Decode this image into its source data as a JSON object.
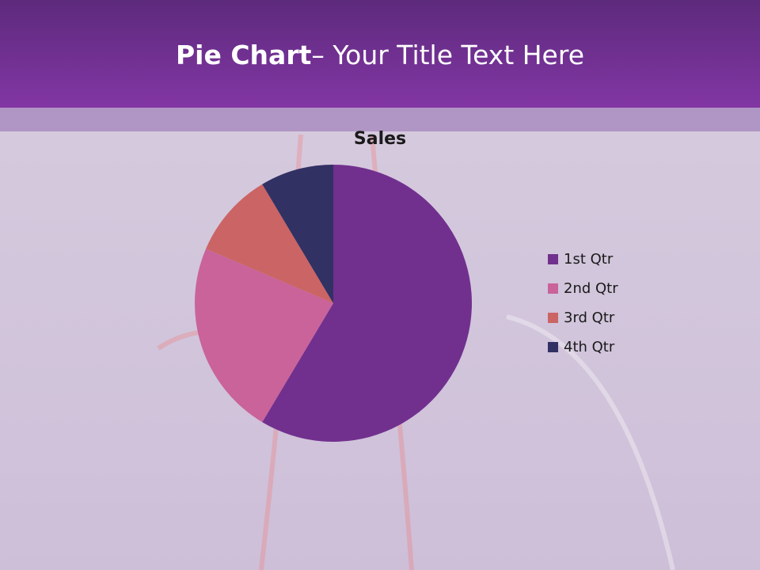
{
  "header": {
    "title_bold": "Pie Chart",
    "title_rest": "– Your Title Text Here"
  },
  "chart_data": {
    "type": "pie",
    "title": "Sales",
    "categories": [
      "1st Qtr",
      "2nd Qtr",
      "3rd Qtr",
      "4th Qtr"
    ],
    "values": [
      8.2,
      3.2,
      1.4,
      1.2
    ],
    "colors": [
      "#71308e",
      "#c9639a",
      "#cb6464",
      "#313163"
    ],
    "legend": "right"
  }
}
